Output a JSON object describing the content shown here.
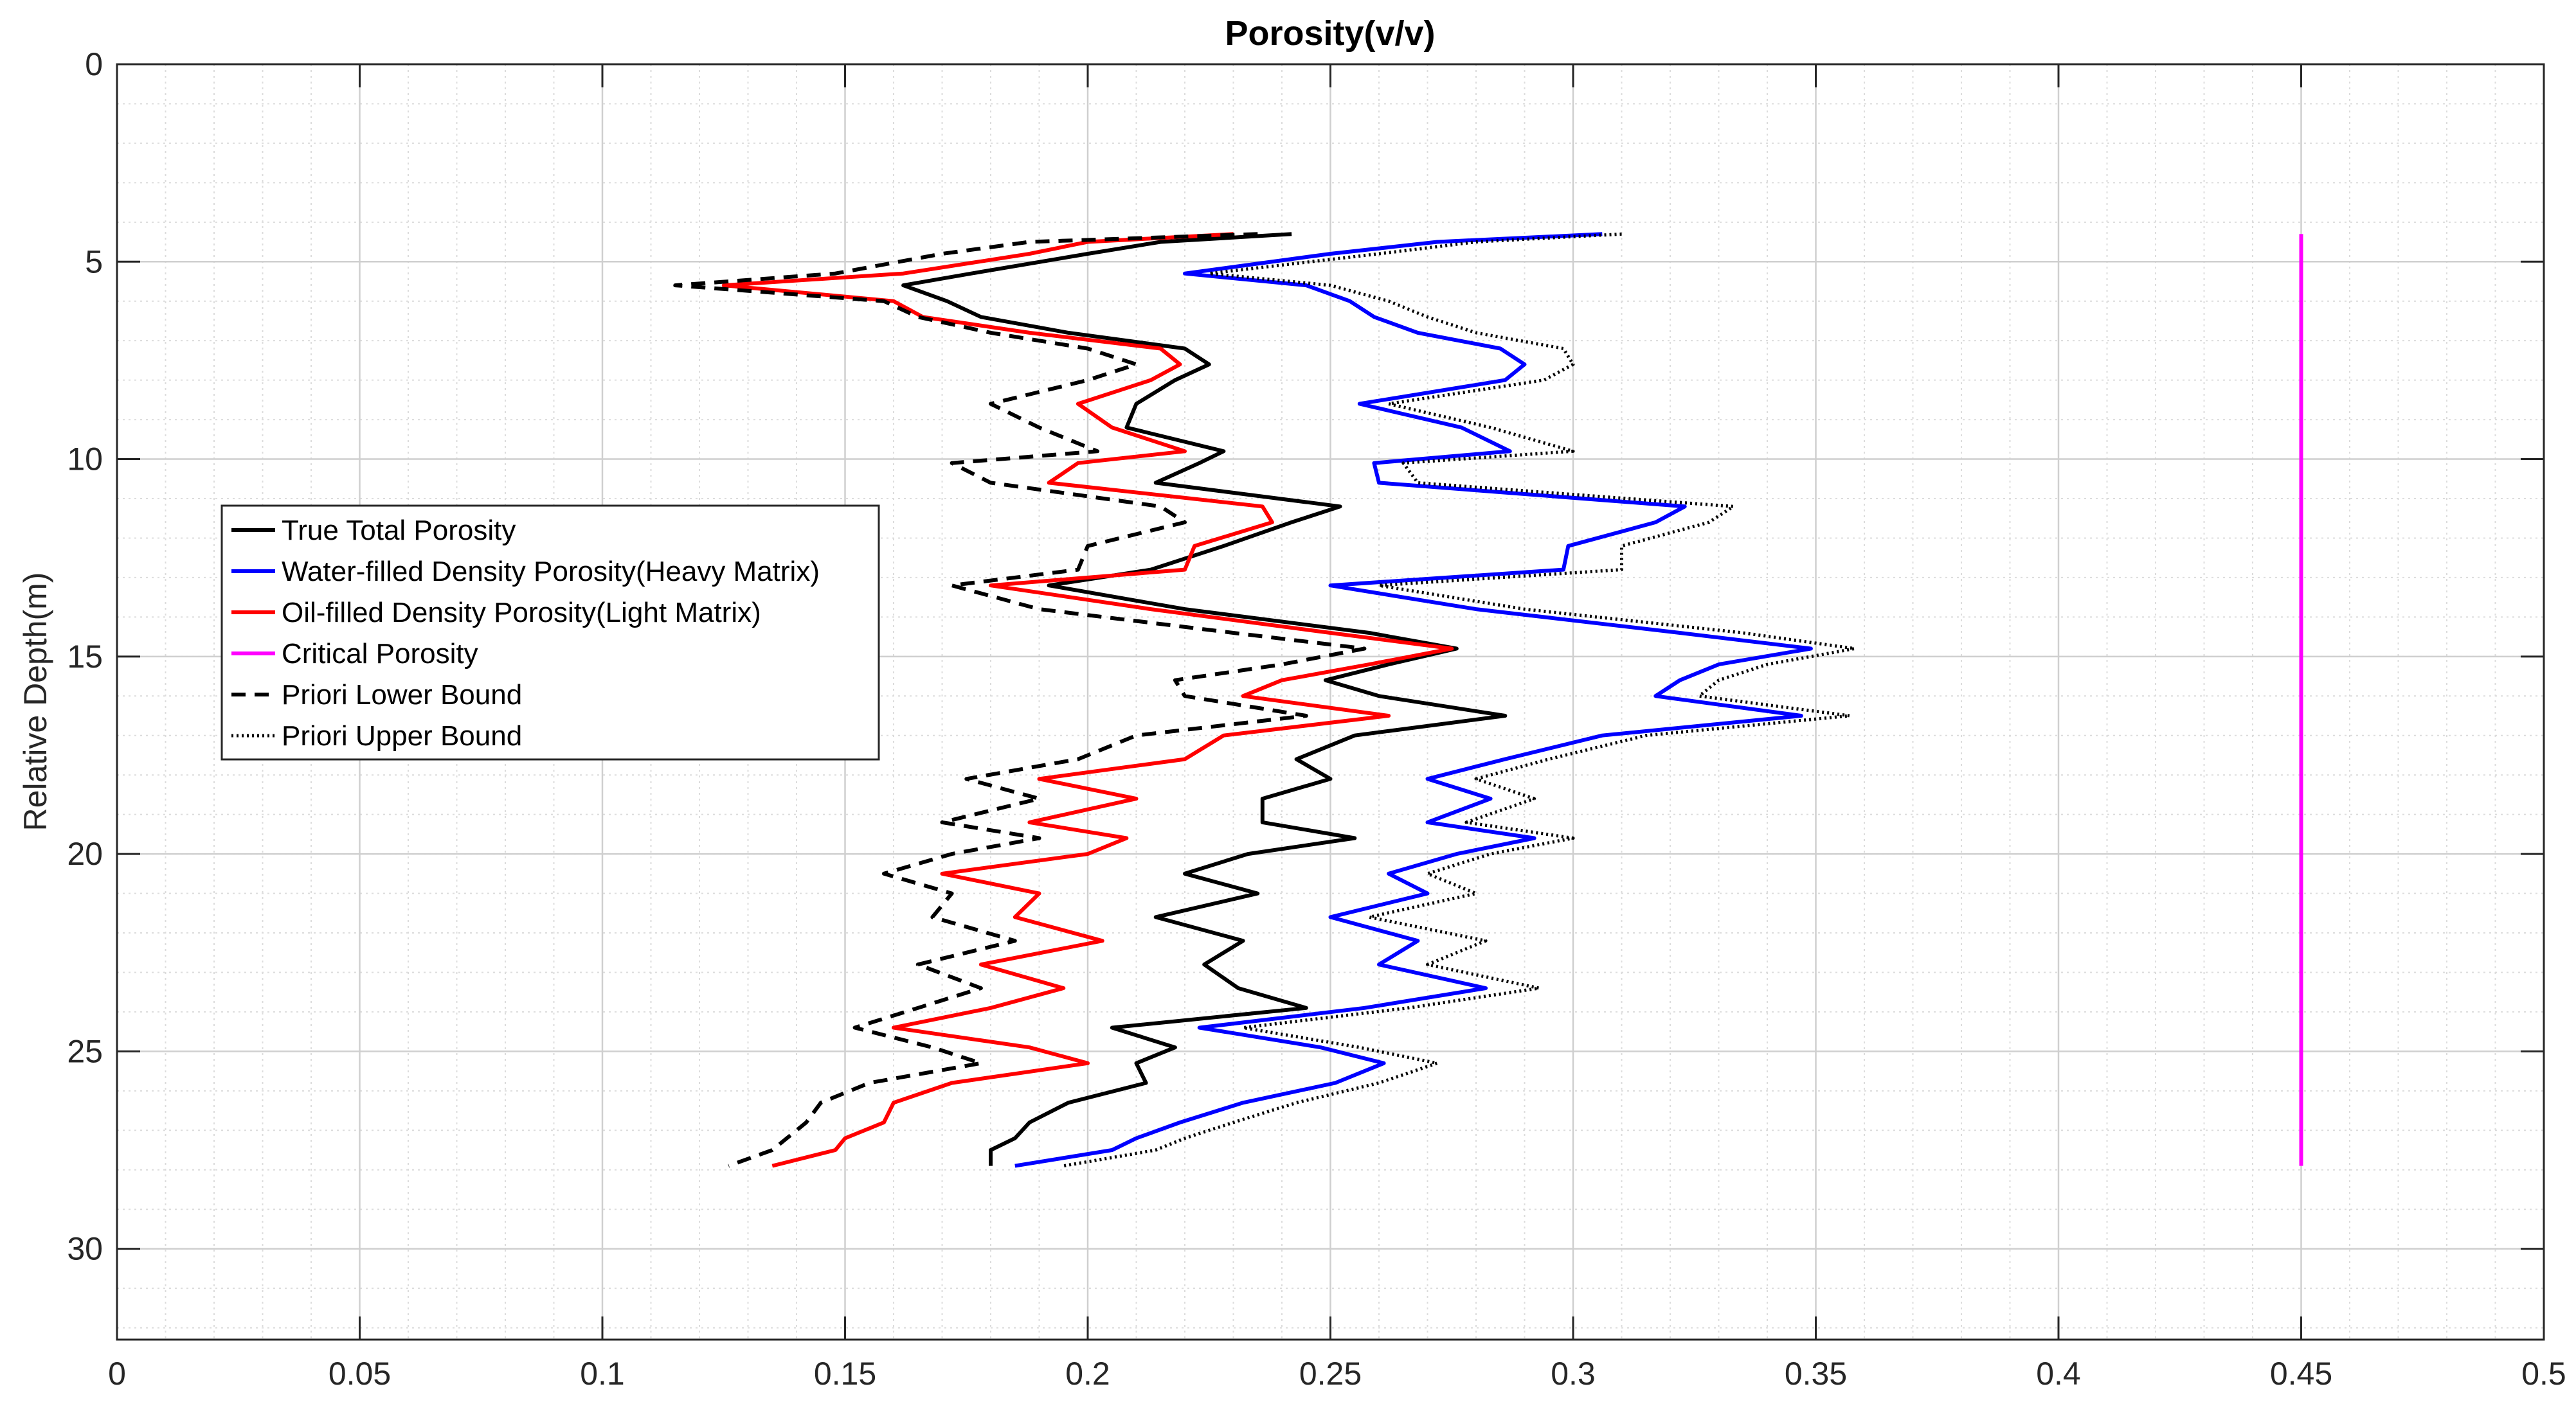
{
  "chart_data": {
    "type": "line",
    "title": "Porosity(v/v)",
    "xlabel": "",
    "ylabel": "Relative Depth(m)",
    "xlim": [
      0,
      0.5
    ],
    "ylim": [
      32.3,
      0
    ],
    "y_reversed": true,
    "x_ticks": [
      0,
      0.05,
      0.1,
      0.15,
      0.2,
      0.25,
      0.3,
      0.35,
      0.4,
      0.45,
      0.5
    ],
    "x_tick_labels": [
      "0",
      "0.05",
      "0.1",
      "0.15",
      "0.2",
      "0.25",
      "0.3",
      "0.35",
      "0.4",
      "0.45",
      "0.5"
    ],
    "y_ticks": [
      0,
      5,
      10,
      15,
      20,
      25,
      30
    ],
    "y_tick_labels": [
      "0",
      "5",
      "10",
      "15",
      "20",
      "25",
      "30"
    ],
    "grid": true,
    "minor_grid": true,
    "legend_location": "left",
    "depth": [
      4.3,
      4.5,
      4.8,
      5.3,
      5.6,
      6.0,
      6.4,
      6.8,
      7.2,
      7.6,
      8.0,
      8.6,
      9.2,
      9.8,
      10.1,
      10.6,
      11.2,
      11.6,
      12.2,
      12.8,
      13.2,
      13.8,
      14.4,
      14.8,
      15.2,
      15.6,
      16.0,
      16.5,
      17.0,
      17.6,
      18.1,
      18.6,
      19.2,
      19.6,
      20.0,
      20.5,
      21.0,
      21.6,
      22.2,
      22.8,
      23.4,
      23.9,
      24.4,
      24.9,
      25.3,
      25.8,
      26.3,
      26.8,
      27.2,
      27.5,
      27.9
    ],
    "series": [
      {
        "name": "True Total Porosity",
        "color": "#000000",
        "dash": "solid",
        "values": [
          0.242,
          0.215,
          0.2,
          0.176,
          0.162,
          0.171,
          0.178,
          0.196,
          0.22,
          0.225,
          0.218,
          0.21,
          0.208,
          0.228,
          0.223,
          0.214,
          0.252,
          0.242,
          0.228,
          0.213,
          0.192,
          0.22,
          0.258,
          0.276,
          0.262,
          0.249,
          0.26,
          0.286,
          0.255,
          0.243,
          0.25,
          0.236,
          0.236,
          0.255,
          0.233,
          0.22,
          0.235,
          0.214,
          0.232,
          0.224,
          0.231,
          0.245,
          0.205,
          0.218,
          0.21,
          0.212,
          0.196,
          0.188,
          0.185,
          0.18,
          0.18
        ]
      },
      {
        "name": "Water-filled Density Porosity(Heavy Matrix)",
        "color": "#0000ff",
        "dash": "solid",
        "values": [
          0.306,
          0.272,
          0.25,
          0.22,
          0.245,
          0.254,
          0.259,
          0.268,
          0.285,
          0.29,
          0.286,
          0.256,
          0.277,
          0.287,
          0.259,
          0.26,
          0.323,
          0.317,
          0.299,
          0.298,
          0.25,
          0.28,
          0.322,
          0.349,
          0.33,
          0.322,
          0.317,
          0.347,
          0.306,
          0.286,
          0.27,
          0.283,
          0.27,
          0.292,
          0.276,
          0.262,
          0.27,
          0.25,
          0.268,
          0.26,
          0.282,
          0.257,
          0.223,
          0.248,
          0.261,
          0.251,
          0.232,
          0.219,
          0.21,
          0.205,
          0.185
        ]
      },
      {
        "name": "Oil-filled Density Porosity(Light Matrix)",
        "color": "#ff0000",
        "dash": "solid",
        "values": [
          0.23,
          0.2,
          0.188,
          0.162,
          0.125,
          0.16,
          0.166,
          0.188,
          0.215,
          0.219,
          0.213,
          0.198,
          0.205,
          0.22,
          0.198,
          0.192,
          0.236,
          0.238,
          0.222,
          0.22,
          0.18,
          0.213,
          0.25,
          0.275,
          0.258,
          0.24,
          0.232,
          0.262,
          0.228,
          0.22,
          0.19,
          0.21,
          0.188,
          0.208,
          0.2,
          0.17,
          0.19,
          0.185,
          0.203,
          0.178,
          0.195,
          0.18,
          0.16,
          0.188,
          0.2,
          0.172,
          0.16,
          0.158,
          0.15,
          0.148,
          0.135
        ]
      },
      {
        "name": "Critical Porosity",
        "color": "#ff00ff",
        "dash": "solid",
        "depth": [
          4.3,
          27.9
        ],
        "values": [
          0.45,
          0.45
        ]
      },
      {
        "name": "Priori Lower Bound",
        "color": "#000000",
        "dash": "dashed",
        "values": [
          0.235,
          0.188,
          0.17,
          0.148,
          0.115,
          0.158,
          0.165,
          0.18,
          0.2,
          0.21,
          0.2,
          0.18,
          0.19,
          0.202,
          0.172,
          0.18,
          0.215,
          0.22,
          0.2,
          0.198,
          0.172,
          0.19,
          0.23,
          0.257,
          0.24,
          0.218,
          0.22,
          0.245,
          0.21,
          0.198,
          0.175,
          0.19,
          0.17,
          0.19,
          0.172,
          0.158,
          0.172,
          0.168,
          0.185,
          0.165,
          0.178,
          0.165,
          0.152,
          0.168,
          0.178,
          0.155,
          0.145,
          0.142,
          0.138,
          0.135,
          0.126
        ]
      },
      {
        "name": "Priori Upper Bound",
        "color": "#000000",
        "dash": "dotted",
        "values": [
          0.31,
          0.28,
          0.26,
          0.225,
          0.25,
          0.262,
          0.27,
          0.28,
          0.298,
          0.3,
          0.294,
          0.262,
          0.283,
          0.3,
          0.265,
          0.268,
          0.333,
          0.328,
          0.31,
          0.31,
          0.26,
          0.29,
          0.335,
          0.358,
          0.34,
          0.33,
          0.326,
          0.357,
          0.315,
          0.295,
          0.28,
          0.292,
          0.278,
          0.3,
          0.283,
          0.27,
          0.28,
          0.258,
          0.282,
          0.27,
          0.293,
          0.266,
          0.232,
          0.256,
          0.272,
          0.26,
          0.243,
          0.23,
          0.22,
          0.214,
          0.195
        ]
      }
    ]
  }
}
